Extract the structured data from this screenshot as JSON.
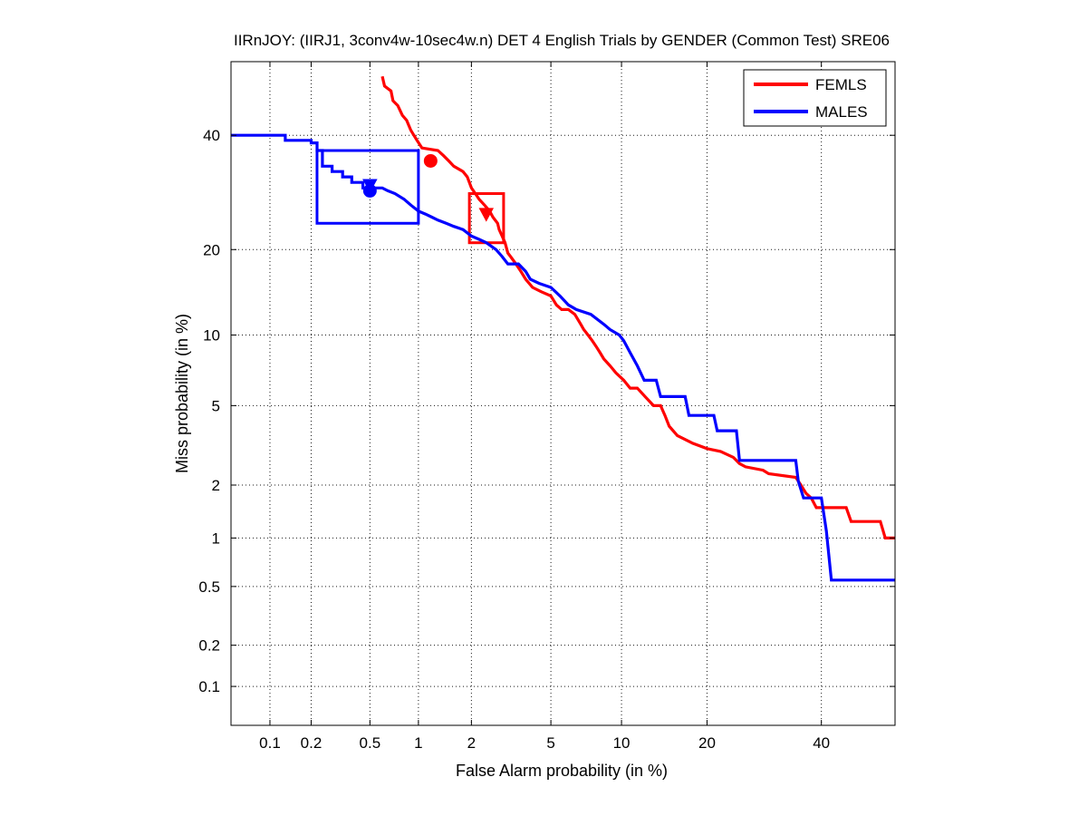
{
  "chart_data": {
    "type": "line",
    "title": "IIRnJOY: (IIRJ1, 3conv4w-10sec4w.n) DET 4 English Trials by GENDER (Common Test) SRE06",
    "xlabel": "False Alarm probability (in %)",
    "ylabel": "Miss probability (in %)",
    "xscale": "normal-deviate (probit)",
    "yscale": "normal-deviate (probit)",
    "xlim": [
      0.05,
      55
    ],
    "ylim": [
      0.05,
      55
    ],
    "xticks": [
      0.1,
      0.2,
      0.5,
      1,
      2,
      5,
      10,
      20,
      40
    ],
    "xtick_labels": [
      "0.1",
      "0.2",
      "0.5",
      "1",
      "2",
      "5",
      "10",
      "20",
      "40"
    ],
    "yticks": [
      0.1,
      0.2,
      0.5,
      1,
      2,
      5,
      10,
      20,
      40
    ],
    "ytick_labels": [
      "0.1",
      "0.2",
      "0.5",
      "1",
      "2",
      "5",
      "10",
      "20",
      "40"
    ],
    "grid": true,
    "legend_position": "top-right",
    "series": [
      {
        "name": "FEMLS",
        "color": "#ff0000",
        "points": [
          [
            0.6,
            52
          ],
          [
            0.62,
            50
          ],
          [
            0.68,
            49
          ],
          [
            0.7,
            47
          ],
          [
            0.75,
            46
          ],
          [
            0.8,
            44
          ],
          [
            0.85,
            43
          ],
          [
            0.9,
            41
          ],
          [
            0.98,
            39
          ],
          [
            1.05,
            37.5
          ],
          [
            1.3,
            37
          ],
          [
            1.4,
            36
          ],
          [
            1.5,
            35
          ],
          [
            1.6,
            34
          ],
          [
            1.8,
            33
          ],
          [
            1.9,
            32
          ],
          [
            2.0,
            30
          ],
          [
            2.1,
            29
          ],
          [
            2.2,
            28
          ],
          [
            2.35,
            27
          ],
          [
            2.5,
            26
          ],
          [
            2.6,
            25
          ],
          [
            2.75,
            24
          ],
          [
            2.8,
            23
          ],
          [
            2.9,
            22
          ],
          [
            3.0,
            21
          ],
          [
            3.1,
            19.5
          ],
          [
            3.2,
            19
          ],
          [
            3.4,
            18
          ],
          [
            3.6,
            17
          ],
          [
            3.8,
            16
          ],
          [
            4.1,
            15
          ],
          [
            4.5,
            14.5
          ],
          [
            5.0,
            14
          ],
          [
            5.3,
            13
          ],
          [
            5.6,
            12.5
          ],
          [
            6.0,
            12.5
          ],
          [
            6.4,
            12
          ],
          [
            6.8,
            11
          ],
          [
            7.0,
            10.5
          ],
          [
            7.3,
            10
          ],
          [
            7.6,
            9.5
          ],
          [
            7.9,
            9
          ],
          [
            8.2,
            8.5
          ],
          [
            8.5,
            8
          ],
          [
            9.0,
            7.5
          ],
          [
            9.5,
            7
          ],
          [
            10.2,
            6.5
          ],
          [
            10.8,
            6
          ],
          [
            11.5,
            6
          ],
          [
            12.3,
            5.5
          ],
          [
            13.2,
            5
          ],
          [
            14.0,
            5
          ],
          [
            14.5,
            4.5
          ],
          [
            15.0,
            4
          ],
          [
            16.0,
            3.6
          ],
          [
            18.0,
            3.3
          ],
          [
            20.0,
            3.1
          ],
          [
            22.0,
            3.0
          ],
          [
            24.0,
            2.8
          ],
          [
            25.0,
            2.6
          ],
          [
            26.0,
            2.5
          ],
          [
            29.0,
            2.4
          ],
          [
            30.0,
            2.3
          ],
          [
            35.0,
            2.2
          ],
          [
            36.0,
            2.0
          ],
          [
            37.0,
            1.8
          ],
          [
            38.0,
            1.7
          ],
          [
            39.0,
            1.5
          ],
          [
            45.0,
            1.5
          ],
          [
            46.0,
            1.25
          ],
          [
            52.0,
            1.25
          ],
          [
            53.0,
            1.0
          ],
          [
            55.0,
            1.0
          ]
        ]
      },
      {
        "name": "MALES",
        "color": "#0000ff",
        "points": [
          [
            0.05,
            40
          ],
          [
            0.13,
            40
          ],
          [
            0.13,
            39
          ],
          [
            0.2,
            39
          ],
          [
            0.2,
            38.5
          ],
          [
            0.22,
            38.5
          ],
          [
            0.22,
            37
          ],
          [
            0.24,
            37
          ],
          [
            0.24,
            34
          ],
          [
            0.28,
            34
          ],
          [
            0.28,
            33
          ],
          [
            0.33,
            33
          ],
          [
            0.33,
            32
          ],
          [
            0.38,
            32
          ],
          [
            0.38,
            31
          ],
          [
            0.45,
            31
          ],
          [
            0.45,
            30
          ],
          [
            0.55,
            30
          ],
          [
            0.6,
            30
          ],
          [
            0.65,
            29.5
          ],
          [
            0.72,
            29
          ],
          [
            0.82,
            28
          ],
          [
            0.9,
            27
          ],
          [
            1.0,
            26
          ],
          [
            1.1,
            25.5
          ],
          [
            1.2,
            25
          ],
          [
            1.3,
            24.5
          ],
          [
            1.45,
            24
          ],
          [
            1.6,
            23.5
          ],
          [
            1.8,
            23
          ],
          [
            2.0,
            22
          ],
          [
            2.2,
            21.5
          ],
          [
            2.4,
            21
          ],
          [
            2.7,
            20
          ],
          [
            2.9,
            19
          ],
          [
            3.1,
            18
          ],
          [
            3.5,
            18
          ],
          [
            3.8,
            17
          ],
          [
            4.0,
            16
          ],
          [
            4.4,
            15.5
          ],
          [
            5.0,
            15
          ],
          [
            5.5,
            14
          ],
          [
            6.0,
            13
          ],
          [
            6.5,
            12.5
          ],
          [
            7.5,
            12
          ],
          [
            8.5,
            11
          ],
          [
            9.0,
            10.5
          ],
          [
            9.8,
            10
          ],
          [
            10.2,
            9.5
          ],
          [
            10.8,
            8.5
          ],
          [
            11.5,
            7.5
          ],
          [
            12.2,
            6.5
          ],
          [
            13.5,
            6.5
          ],
          [
            14.0,
            5.5
          ],
          [
            17.0,
            5.5
          ],
          [
            17.5,
            4.5
          ],
          [
            21.0,
            4.5
          ],
          [
            21.5,
            3.8
          ],
          [
            24.5,
            3.8
          ],
          [
            25.0,
            2.7
          ],
          [
            35.0,
            2.7
          ],
          [
            35.5,
            2.1
          ],
          [
            36.5,
            1.7
          ],
          [
            40.0,
            1.7
          ],
          [
            41.0,
            1.1
          ],
          [
            42.0,
            0.55
          ],
          [
            55.0,
            0.55
          ]
        ]
      }
    ],
    "confidence_boxes": [
      {
        "series": "FEMLS",
        "x": [
          1.95,
          2.95
        ],
        "y": [
          21,
          29
        ]
      },
      {
        "series": "MALES",
        "x": [
          0.22,
          1.0
        ],
        "y": [
          24,
          37
        ]
      }
    ],
    "markers": [
      {
        "series": "FEMLS",
        "shape": "circle",
        "x": 1.18,
        "y": 35
      },
      {
        "series": "FEMLS",
        "shape": "triangle-down",
        "x": 2.4,
        "y": 25.5
      },
      {
        "series": "MALES",
        "shape": "circle",
        "x": 0.5,
        "y": 29.5
      },
      {
        "series": "MALES",
        "shape": "triangle-down",
        "x": 0.5,
        "y": 30.5
      }
    ]
  }
}
